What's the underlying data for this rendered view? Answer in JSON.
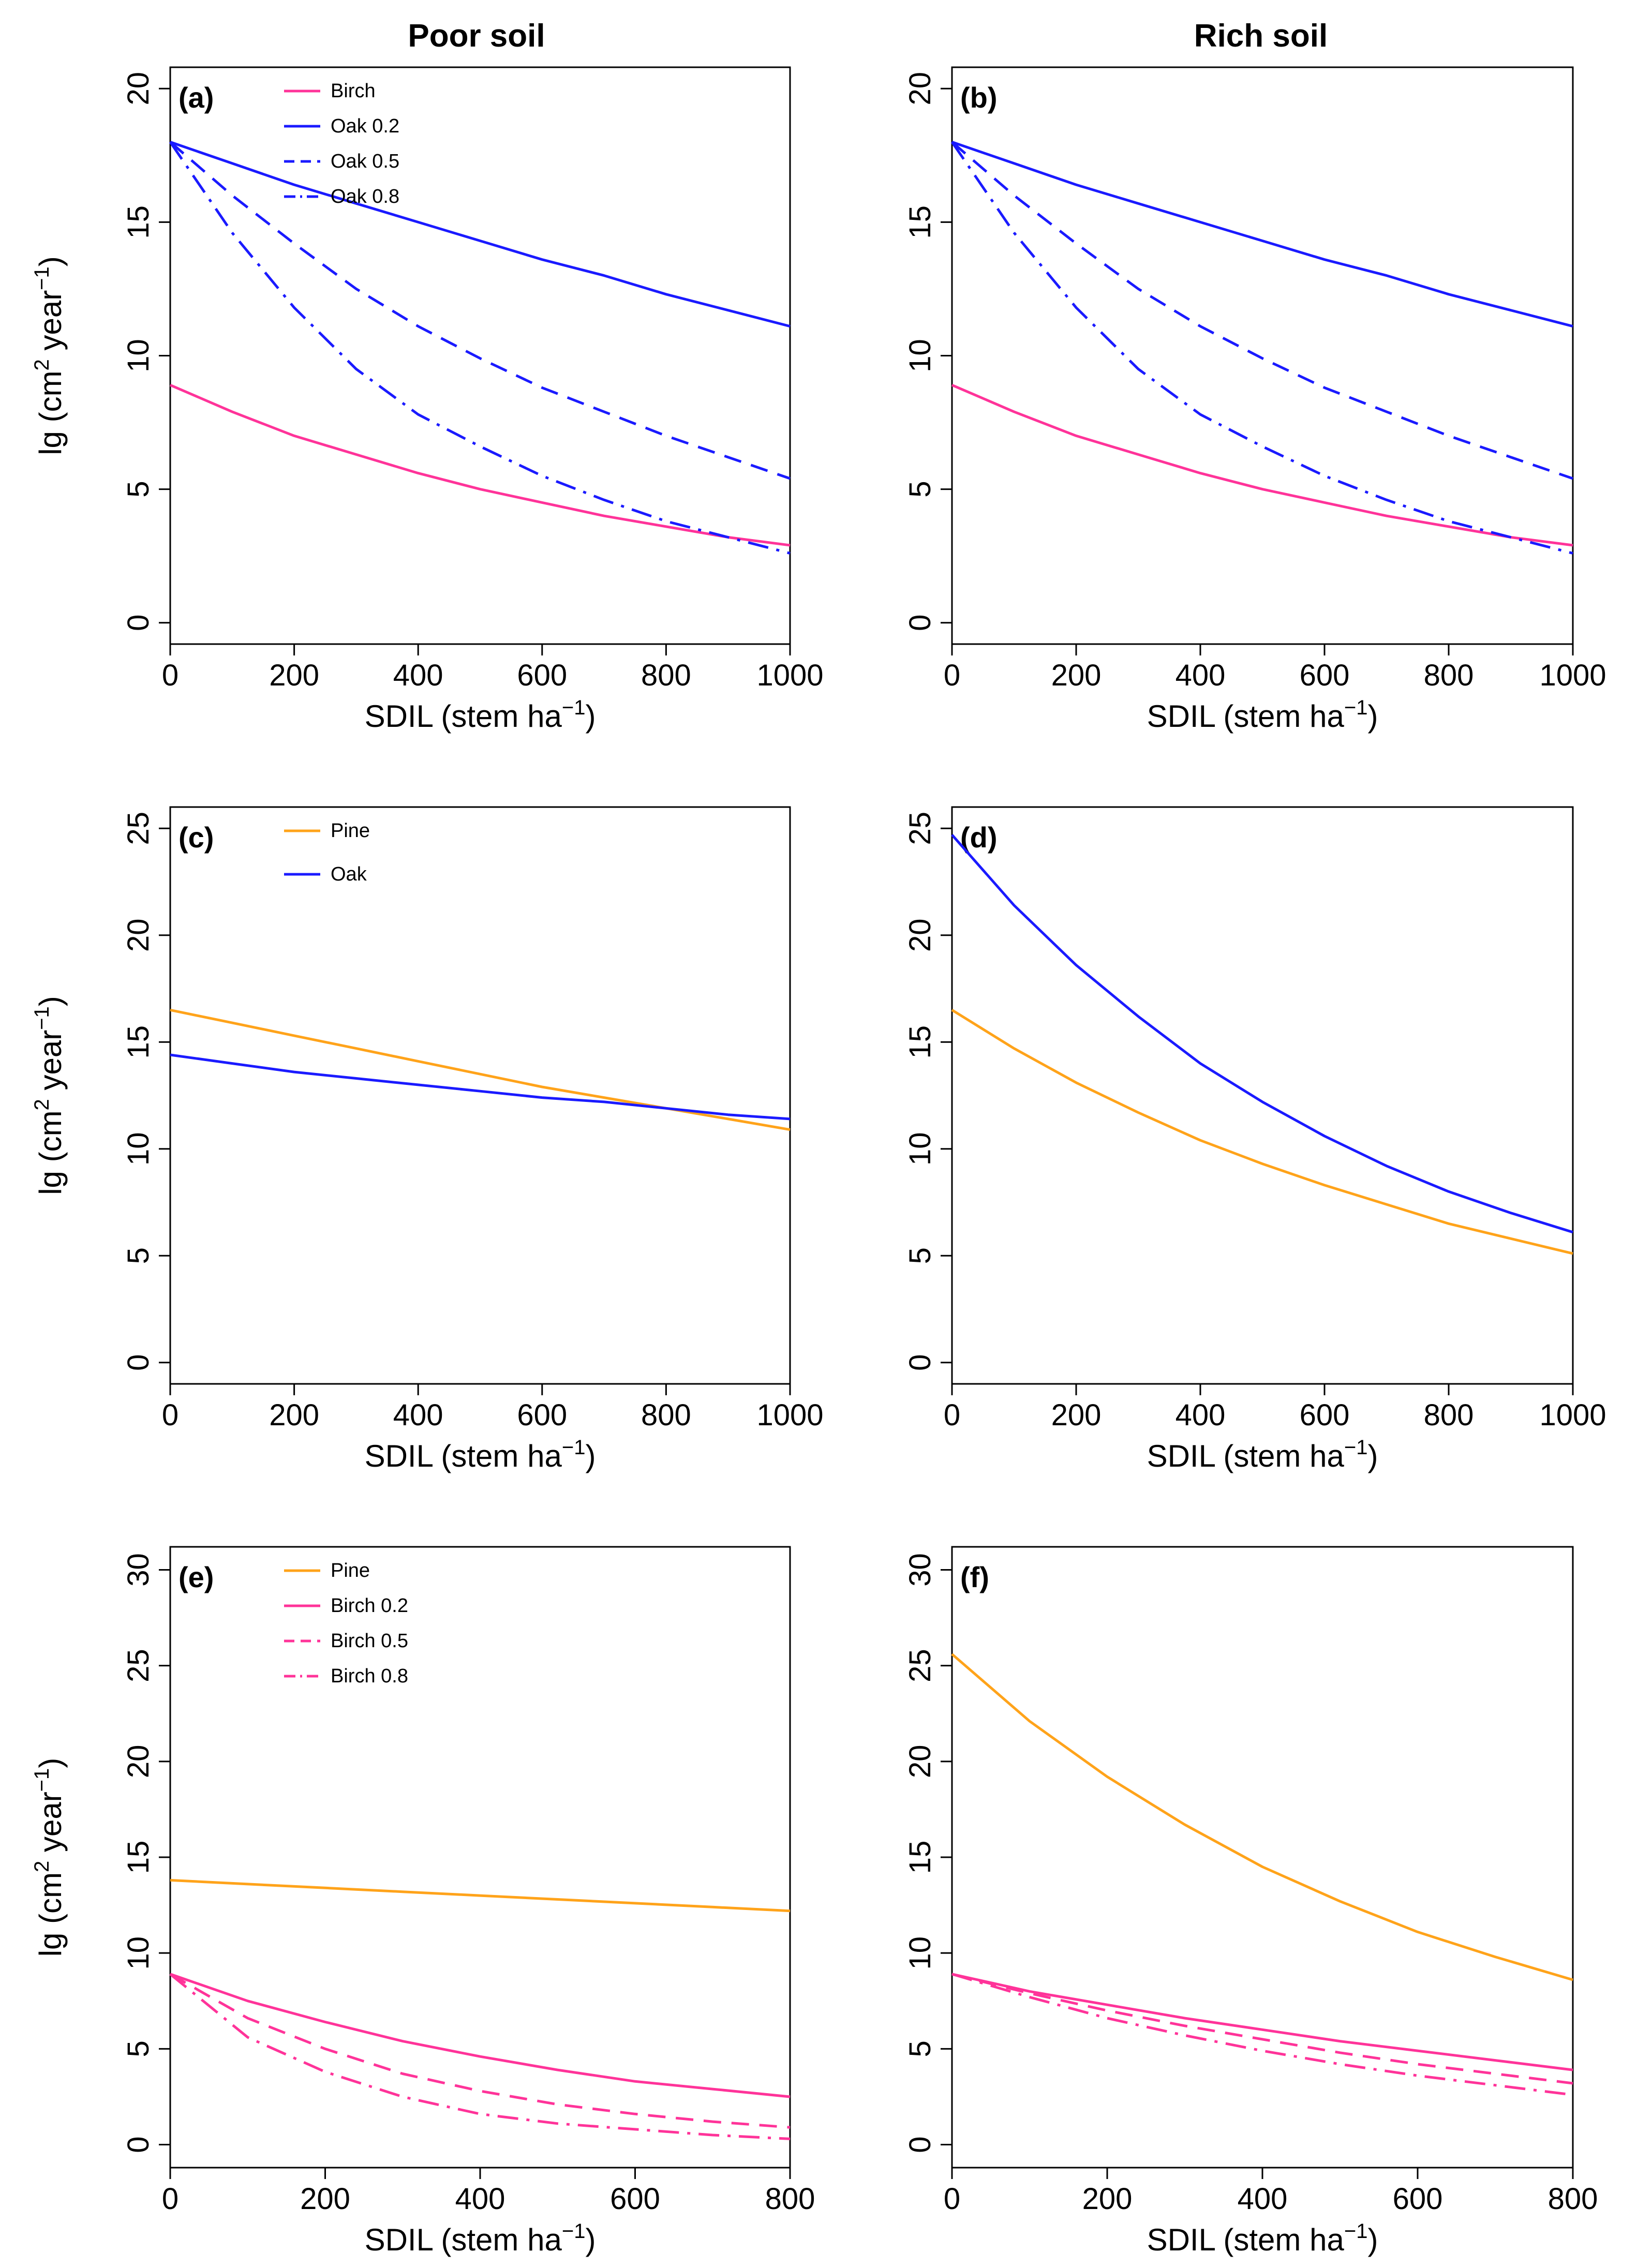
{
  "columns": [
    "Poor soil",
    "Rich soil"
  ],
  "colors": {
    "birch": "#ff3399",
    "oak": "#1a1aff",
    "pine": "#ffa31a"
  },
  "x_label": {
    "base": "SDIL (stem ha",
    "sup": "−1",
    "close": ")"
  },
  "y_label": {
    "base": "lg (cm",
    "sup1": "2",
    "mid": " year",
    "sup2": "−1",
    "close": ")"
  },
  "chart_data": [
    {
      "type": "line",
      "panel": "(a)",
      "column": "Poor soil",
      "xlim": [
        0,
        1000
      ],
      "ylim": [
        -0.8,
        20.8
      ],
      "xticks": [
        0,
        200,
        400,
        600,
        800,
        1000
      ],
      "yticks": [
        0,
        5,
        10,
        15,
        20
      ],
      "legend": true,
      "legend_position": "top-left",
      "series": [
        {
          "name": "Birch",
          "color": "birch",
          "dash": "solid",
          "x": [
            0,
            100,
            200,
            300,
            400,
            500,
            600,
            700,
            800,
            900,
            1000
          ],
          "y": [
            8.9,
            7.9,
            7.0,
            6.3,
            5.6,
            5.0,
            4.5,
            4.0,
            3.6,
            3.2,
            2.9
          ]
        },
        {
          "name": "Oak 0.2",
          "color": "oak",
          "dash": "solid",
          "x": [
            0,
            100,
            200,
            300,
            400,
            500,
            600,
            700,
            800,
            900,
            1000
          ],
          "y": [
            18.0,
            17.2,
            16.4,
            15.7,
            15.0,
            14.3,
            13.6,
            13.0,
            12.3,
            11.7,
            11.1
          ]
        },
        {
          "name": "Oak 0.5",
          "color": "oak",
          "dash": "dashed",
          "x": [
            0,
            100,
            200,
            300,
            400,
            500,
            600,
            700,
            800,
            900,
            1000
          ],
          "y": [
            18.0,
            16.0,
            14.2,
            12.5,
            11.1,
            9.9,
            8.8,
            7.9,
            7.0,
            6.2,
            5.4
          ]
        },
        {
          "name": "Oak 0.8",
          "color": "oak",
          "dash": "dashdot",
          "x": [
            0,
            100,
            200,
            300,
            400,
            500,
            600,
            700,
            800,
            900,
            1000
          ],
          "y": [
            18.0,
            14.6,
            11.8,
            9.5,
            7.8,
            6.6,
            5.5,
            4.6,
            3.8,
            3.2,
            2.6
          ]
        }
      ]
    },
    {
      "type": "line",
      "panel": "(b)",
      "column": "Rich soil",
      "xlim": [
        0,
        1000
      ],
      "ylim": [
        -0.8,
        20.8
      ],
      "xticks": [
        0,
        200,
        400,
        600,
        800,
        1000
      ],
      "yticks": [
        0,
        5,
        10,
        15,
        20
      ],
      "legend": false,
      "series": [
        {
          "name": "Birch",
          "color": "birch",
          "dash": "solid",
          "x": [
            0,
            100,
            200,
            300,
            400,
            500,
            600,
            700,
            800,
            900,
            1000
          ],
          "y": [
            8.9,
            7.9,
            7.0,
            6.3,
            5.6,
            5.0,
            4.5,
            4.0,
            3.6,
            3.2,
            2.9
          ]
        },
        {
          "name": "Oak 0.2",
          "color": "oak",
          "dash": "solid",
          "x": [
            0,
            100,
            200,
            300,
            400,
            500,
            600,
            700,
            800,
            900,
            1000
          ],
          "y": [
            18.0,
            17.2,
            16.4,
            15.7,
            15.0,
            14.3,
            13.6,
            13.0,
            12.3,
            11.7,
            11.1
          ]
        },
        {
          "name": "Oak 0.5",
          "color": "oak",
          "dash": "dashed",
          "x": [
            0,
            100,
            200,
            300,
            400,
            500,
            600,
            700,
            800,
            900,
            1000
          ],
          "y": [
            18.0,
            16.0,
            14.2,
            12.5,
            11.1,
            9.9,
            8.8,
            7.9,
            7.0,
            6.2,
            5.4
          ]
        },
        {
          "name": "Oak 0.8",
          "color": "oak",
          "dash": "dashdot",
          "x": [
            0,
            100,
            200,
            300,
            400,
            500,
            600,
            700,
            800,
            900,
            1000
          ],
          "y": [
            18.0,
            14.6,
            11.8,
            9.5,
            7.8,
            6.6,
            5.5,
            4.6,
            3.8,
            3.2,
            2.6
          ]
        }
      ]
    },
    {
      "type": "line",
      "panel": "(c)",
      "column": "Poor soil",
      "xlim": [
        0,
        1000
      ],
      "ylim": [
        -1,
        26
      ],
      "xticks": [
        0,
        200,
        400,
        600,
        800,
        1000
      ],
      "yticks": [
        0,
        5,
        10,
        15,
        20,
        25
      ],
      "legend": true,
      "legend_position": "top-left",
      "legend_spacing": "wide",
      "series": [
        {
          "name": "Pine",
          "color": "pine",
          "dash": "solid",
          "x": [
            0,
            100,
            200,
            300,
            400,
            500,
            600,
            700,
            800,
            900,
            1000
          ],
          "y": [
            16.5,
            15.9,
            15.3,
            14.7,
            14.1,
            13.5,
            12.9,
            12.4,
            11.9,
            11.4,
            10.9
          ]
        },
        {
          "name": "Oak",
          "color": "oak",
          "dash": "solid",
          "x": [
            0,
            100,
            200,
            300,
            400,
            500,
            600,
            700,
            800,
            900,
            1000
          ],
          "y": [
            14.4,
            14.0,
            13.6,
            13.3,
            13.0,
            12.7,
            12.4,
            12.2,
            11.9,
            11.6,
            11.4
          ]
        }
      ]
    },
    {
      "type": "line",
      "panel": "(d)",
      "column": "Rich soil",
      "xlim": [
        0,
        1000
      ],
      "ylim": [
        -1,
        26
      ],
      "xticks": [
        0,
        200,
        400,
        600,
        800,
        1000
      ],
      "yticks": [
        0,
        5,
        10,
        15,
        20,
        25
      ],
      "legend": false,
      "series": [
        {
          "name": "Oak",
          "color": "oak",
          "dash": "solid",
          "x": [
            0,
            100,
            200,
            300,
            400,
            500,
            600,
            700,
            800,
            900,
            1000
          ],
          "y": [
            24.7,
            21.4,
            18.6,
            16.2,
            14.0,
            12.2,
            10.6,
            9.2,
            8.0,
            7.0,
            6.1
          ]
        },
        {
          "name": "Pine",
          "color": "pine",
          "dash": "solid",
          "x": [
            0,
            100,
            200,
            300,
            400,
            500,
            600,
            700,
            800,
            900,
            1000
          ],
          "y": [
            16.5,
            14.7,
            13.1,
            11.7,
            10.4,
            9.3,
            8.3,
            7.4,
            6.5,
            5.8,
            5.1
          ]
        }
      ]
    },
    {
      "type": "line",
      "panel": "(e)",
      "column": "Poor soil",
      "xlim": [
        0,
        800
      ],
      "ylim": [
        -1.2,
        31.2
      ],
      "xticks": [
        0,
        200,
        400,
        600,
        800
      ],
      "yticks": [
        0,
        5,
        10,
        15,
        20,
        25,
        30
      ],
      "legend": true,
      "legend_position": "top-left",
      "series": [
        {
          "name": "Pine",
          "color": "pine",
          "dash": "solid",
          "x": [
            0,
            100,
            200,
            300,
            400,
            500,
            600,
            700,
            800
          ],
          "y": [
            13.8,
            13.6,
            13.4,
            13.2,
            13.0,
            12.8,
            12.6,
            12.4,
            12.2
          ]
        },
        {
          "name": "Birch 0.2",
          "color": "birch",
          "dash": "solid",
          "x": [
            0,
            100,
            200,
            300,
            400,
            500,
            600,
            700,
            800
          ],
          "y": [
            8.9,
            7.5,
            6.4,
            5.4,
            4.6,
            3.9,
            3.3,
            2.9,
            2.5
          ]
        },
        {
          "name": "Birch 0.5",
          "color": "birch",
          "dash": "dashed",
          "x": [
            0,
            100,
            200,
            300,
            400,
            500,
            600,
            700,
            800
          ],
          "y": [
            8.9,
            6.6,
            5.0,
            3.7,
            2.8,
            2.1,
            1.6,
            1.2,
            0.9
          ]
        },
        {
          "name": "Birch 0.8",
          "color": "birch",
          "dash": "dashdot",
          "x": [
            0,
            100,
            200,
            300,
            400,
            500,
            600,
            700,
            800
          ],
          "y": [
            8.9,
            5.6,
            3.8,
            2.5,
            1.6,
            1.1,
            0.8,
            0.5,
            0.3
          ]
        }
      ]
    },
    {
      "type": "line",
      "panel": "(f)",
      "column": "Rich soil",
      "xlim": [
        0,
        800
      ],
      "ylim": [
        -1.2,
        31.2
      ],
      "xticks": [
        0,
        200,
        400,
        600,
        800
      ],
      "yticks": [
        0,
        5,
        10,
        15,
        20,
        25,
        30
      ],
      "legend": false,
      "series": [
        {
          "name": "Pine",
          "color": "pine",
          "dash": "solid",
          "x": [
            0,
            100,
            200,
            300,
            400,
            500,
            600,
            700,
            800
          ],
          "y": [
            25.6,
            22.1,
            19.2,
            16.7,
            14.5,
            12.7,
            11.1,
            9.8,
            8.6
          ]
        },
        {
          "name": "Birch 0.2",
          "color": "birch",
          "dash": "solid",
          "x": [
            0,
            100,
            200,
            300,
            400,
            500,
            600,
            700,
            800
          ],
          "y": [
            8.9,
            8.0,
            7.3,
            6.6,
            6.0,
            5.4,
            4.9,
            4.4,
            3.9
          ]
        },
        {
          "name": "Birch 0.5",
          "color": "birch",
          "dash": "dashed",
          "x": [
            0,
            100,
            200,
            300,
            400,
            500,
            600,
            700,
            800
          ],
          "y": [
            8.9,
            7.9,
            7.0,
            6.2,
            5.5,
            4.8,
            4.2,
            3.7,
            3.2
          ]
        },
        {
          "name": "Birch 0.8",
          "color": "birch",
          "dash": "dashdot",
          "x": [
            0,
            100,
            200,
            300,
            400,
            500,
            600,
            700,
            800
          ],
          "y": [
            8.9,
            7.7,
            6.6,
            5.7,
            4.9,
            4.2,
            3.6,
            3.1,
            2.6
          ]
        }
      ]
    }
  ]
}
